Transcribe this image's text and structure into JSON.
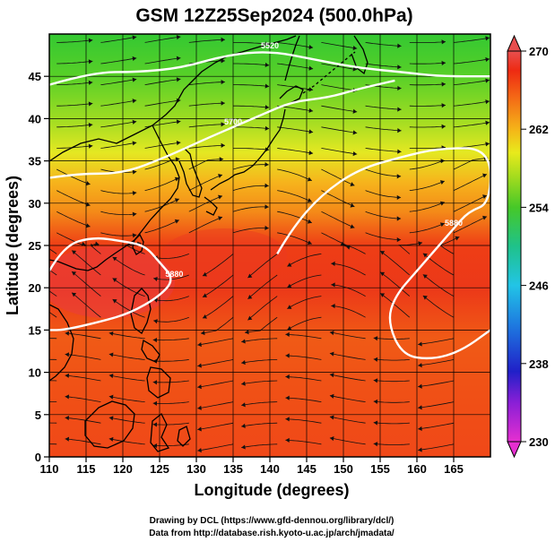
{
  "title": "GSM 12Z25Sep2024 (500.0hPa)",
  "x_axis_title": "Longitude (degrees)",
  "y_axis_title": "Latitude  (degrees)",
  "x_ticks": [
    "110",
    "115",
    "120",
    "125",
    "130",
    "135",
    "140",
    "145",
    "150",
    "155",
    "160",
    "165"
  ],
  "y_ticks": [
    "0",
    "5",
    "10",
    "15",
    "20",
    "25",
    "30",
    "35",
    "40",
    "45"
  ],
  "colorbar_ticks": [
    "230",
    "238",
    "246",
    "254",
    "262",
    "270"
  ],
  "contour_labels": [
    "5880",
    "5880",
    "5880",
    "5880",
    "5700",
    "5520"
  ],
  "credits": {
    "line1": "Drawing by DCL (https://www.gfd-dennou.org/library/dcl/)",
    "line2": "Data from http://database.rish.kyoto-u.ac.jp/arch/jmadata/"
  },
  "colors": {
    "frame": "#000000",
    "contour": "#ffffff",
    "coast": "#000000",
    "streamline": "#111111"
  },
  "chart_data": {
    "type": "heatmap",
    "title": "GSM 12Z25Sep2024 (500.0hPa)",
    "xlabel": "Longitude (degrees)",
    "ylabel": "Latitude  (degrees)",
    "xlim": [
      110,
      170
    ],
    "ylim": [
      0,
      50
    ],
    "x_ticks": [
      110,
      115,
      120,
      125,
      130,
      135,
      140,
      145,
      150,
      155,
      160,
      165
    ],
    "y_ticks": [
      0,
      5,
      10,
      15,
      20,
      25,
      30,
      35,
      40,
      45
    ],
    "colorbar": {
      "min": 230,
      "max": 270,
      "ticks": [
        230,
        238,
        246,
        254,
        262,
        270
      ],
      "colors": [
        "#e52fd0",
        "#8a1fd6",
        "#2020c8",
        "#1e7be0",
        "#22c4e6",
        "#1fc28a",
        "#46c828",
        "#a6dc1e",
        "#e8ea1c",
        "#f5b418",
        "#f46a16",
        "#ee2a12",
        "#e84f4f"
      ]
    },
    "field_profile": [
      {
        "lat": 50,
        "value": 253
      },
      {
        "lat": 45,
        "value": 256
      },
      {
        "lat": 40,
        "value": 259
      },
      {
        "lat": 35,
        "value": 262
      },
      {
        "lat": 30,
        "value": 266
      },
      {
        "lat": 25,
        "value": 268
      },
      {
        "lat": 20,
        "value": 267
      },
      {
        "lat": 15,
        "value": 266
      },
      {
        "lat": 10,
        "value": 266
      },
      {
        "lat": 5,
        "value": 267
      },
      {
        "lat": 0,
        "value": 267
      }
    ],
    "contours": [
      {
        "label": "5880",
        "points": [
          [
            110,
            22
          ],
          [
            112,
            25
          ],
          [
            116,
            26
          ],
          [
            120,
            25.5
          ],
          [
            123,
            25
          ],
          [
            125,
            23
          ],
          [
            127,
            21
          ],
          [
            125,
            19
          ],
          [
            121,
            17
          ],
          [
            117,
            16
          ],
          [
            112,
            15
          ],
          [
            110,
            15
          ]
        ]
      },
      {
        "label": "5880",
        "points": [
          [
            141,
            24
          ],
          [
            143,
            27
          ],
          [
            147,
            31
          ],
          [
            152,
            34
          ],
          [
            158,
            35.5
          ],
          [
            163,
            36.5
          ],
          [
            170,
            36.5
          ],
          [
            170,
            30
          ],
          [
            167,
            29
          ],
          [
            165,
            27
          ],
          [
            163,
            25
          ],
          [
            160,
            22
          ],
          [
            157,
            19
          ],
          [
            156,
            16
          ],
          [
            158,
            12
          ],
          [
            162,
            11.5
          ],
          [
            166,
            12.5
          ],
          [
            170,
            15
          ]
        ]
      },
      {
        "label": "5700",
        "points": [
          [
            110,
            33
          ],
          [
            114,
            33.5
          ],
          [
            120,
            33.5
          ],
          [
            126,
            35.5
          ],
          [
            131,
            37.5
          ],
          [
            135,
            39
          ],
          [
            139,
            40.5
          ],
          [
            143,
            42
          ],
          [
            148,
            42.5
          ],
          [
            152,
            43.5
          ],
          [
            157,
            44.5
          ]
        ]
      },
      {
        "label": "5520",
        "points": [
          [
            110,
            44
          ],
          [
            116,
            45.5
          ],
          [
            122,
            45.5
          ],
          [
            128,
            46
          ],
          [
            134,
            47.5
          ],
          [
            140,
            48
          ],
          [
            146,
            47
          ],
          [
            152,
            46
          ],
          [
            158,
            45.5
          ],
          [
            163,
            45
          ],
          [
            170,
            45
          ]
        ]
      }
    ]
  }
}
